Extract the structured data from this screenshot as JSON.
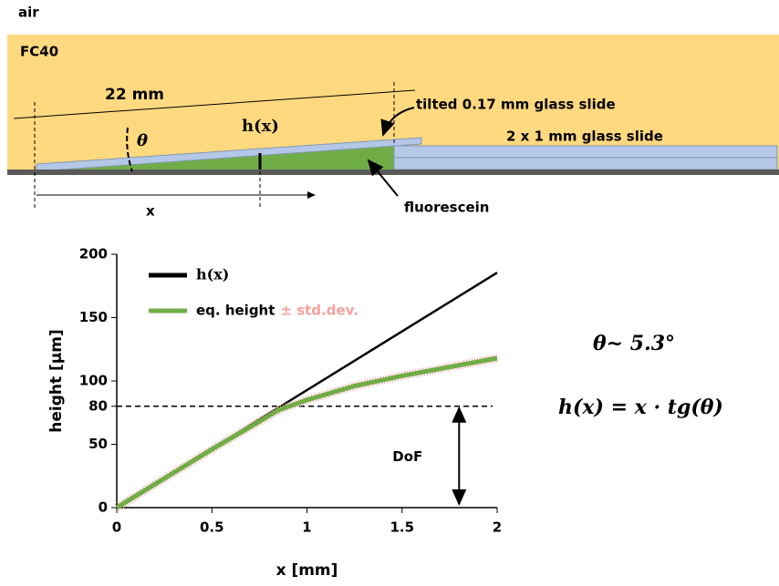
{
  "diagram": {
    "air": "air",
    "medium": "FC40",
    "length": "22 mm",
    "angle": "θ",
    "height": "h(x)",
    "position": "x",
    "tilted_slide": "tilted 0.17 mm glass slide",
    "base_slide": "2 x 1 mm glass slide",
    "dye": "fluorescein"
  },
  "equations": {
    "angle": "θ~ 5.3°",
    "height": "h(x) = x · tg(θ)"
  },
  "chart_data": {
    "type": "line",
    "x_label": "x [mm]",
    "y_label": "height  [µm]",
    "xlim": [
      0,
      2
    ],
    "ylim": [
      0,
      200
    ],
    "xticks": [
      0,
      0.5,
      1,
      1.5,
      2
    ],
    "yticks": [
      0,
      50,
      80,
      100,
      150,
      200
    ],
    "series": [
      {
        "name": "h(x)",
        "color": "#000000",
        "x": [
          0,
          2
        ],
        "values": [
          0,
          185.5
        ]
      },
      {
        "name": "eq. height",
        "color": "#70ad47",
        "x": [
          0,
          0.25,
          0.5,
          0.75,
          0.85,
          1,
          1.25,
          1.5,
          1.75,
          2
        ],
        "values": [
          0,
          23,
          46,
          68,
          77,
          85,
          96,
          104,
          111,
          118
        ]
      }
    ],
    "error_label": "± std.dev.",
    "error_color": "#f4a09a",
    "reference_line": {
      "value": 80,
      "label": "DoF",
      "x": 1.8
    }
  }
}
